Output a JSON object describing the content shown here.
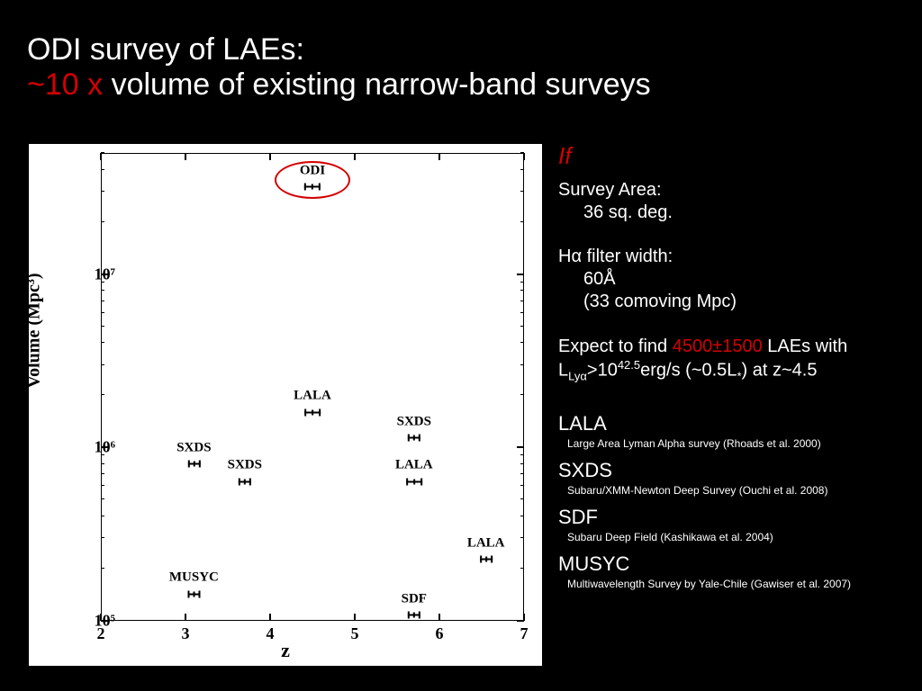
{
  "title": {
    "line1": "ODI survey of LAEs:",
    "line2_red": "~10 x",
    "line2_white": " volume of existing narrow-band surveys"
  },
  "if_label": "If",
  "survey_area": {
    "label": "Survey Area:",
    "value": "36 sq. deg."
  },
  "filter": {
    "label": "Hα filter width:",
    "value1": "60Å",
    "value2": "(33 comoving Mpc)"
  },
  "expect": {
    "pre": "Expect to find ",
    "num": "4500±1500",
    "mid": " LAEs with L",
    "sub1": "Lyα",
    "gt": ">10",
    "sup1": "42.5",
    "unit": "erg/s (~0.5L",
    "sub2": "*",
    "post": ") at z~4.5"
  },
  "surveys": [
    {
      "name": "LALA",
      "desc": "Large Area Lyman Alpha survey (Rhoads et al. 2000)"
    },
    {
      "name": "SXDS",
      "desc": "Subaru/XMM-Newton Deep Survey (Ouchi et al. 2008)"
    },
    {
      "name": "SDF",
      "desc": "Subaru Deep Field (Kashikawa et al.  2004)"
    },
    {
      "name": "MUSYC",
      "desc": "Multiwavelength Survey by Yale-Chile (Gawiser et al. 2007)"
    }
  ],
  "chart": {
    "type": "scatter",
    "xlabel": "z",
    "ylabel": "Volume (Mpc³)",
    "xlim": [
      2,
      7
    ],
    "ylim_log10": [
      5,
      7.7
    ],
    "xtick_step": 1,
    "yticks_log10": [
      5,
      6,
      7
    ],
    "ytick_labels": [
      "10⁵",
      "10⁶",
      "10⁷"
    ],
    "background_color": "#ffffff",
    "axis_color": "#000000",
    "label_fontsize": 20,
    "tick_fontsize": 18,
    "highlight": {
      "label": "ODI",
      "color": "#d40000"
    },
    "points": [
      {
        "label": "ODI",
        "z": 4.5,
        "log10vol": 7.55,
        "errw": 18
      },
      {
        "label": "LALA",
        "z": 4.5,
        "log10vol": 6.25,
        "errw": 18
      },
      {
        "label": "SXDS",
        "z": 3.1,
        "log10vol": 5.95,
        "errw": 14
      },
      {
        "label": "SXDS",
        "z": 3.7,
        "log10vol": 5.85,
        "errw": 14
      },
      {
        "label": "SXDS",
        "z": 5.7,
        "log10vol": 6.1,
        "errw": 14
      },
      {
        "label": "LALA",
        "z": 5.7,
        "log10vol": 5.85,
        "errw": 18
      },
      {
        "label": "LALA",
        "z": 6.55,
        "log10vol": 5.4,
        "errw": 14
      },
      {
        "label": "MUSYC",
        "z": 3.1,
        "log10vol": 5.2,
        "errw": 14
      },
      {
        "label": "SDF",
        "z": 5.7,
        "log10vol": 5.08,
        "errw": 14
      }
    ]
  },
  "colors": {
    "background": "#000000",
    "text": "#ffffff",
    "accent": "#d40000"
  }
}
